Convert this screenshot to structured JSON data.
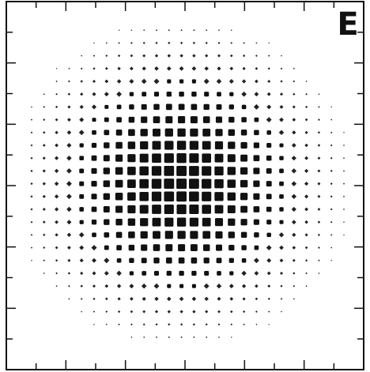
{
  "panel_label": "E"
}
